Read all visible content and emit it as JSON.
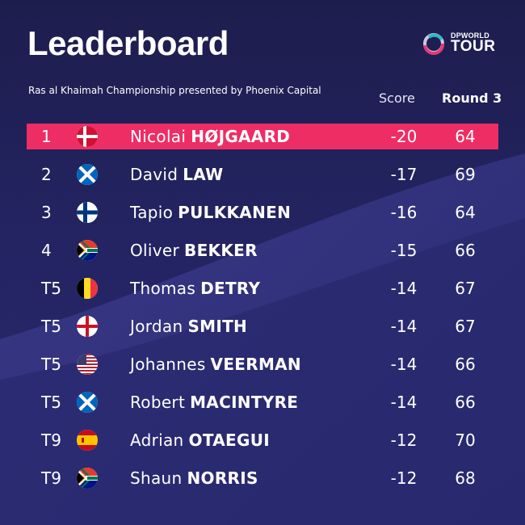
{
  "header": {
    "title": "Leaderboard",
    "subtitle": "Ras al Khaimah Championship presented by Phoenix Capital",
    "logo_small": "DPWORLD",
    "logo_big": "TOUR",
    "col_score": "Score",
    "col_round": "Round 3"
  },
  "colors": {
    "background": "#232360",
    "leader_highlight": "#ee2d64",
    "accent_light": "#3a3a86"
  },
  "rows": [
    {
      "pos": "1",
      "flag": "denmark-flag",
      "first": "Nicolai",
      "last": "HØJGAARD",
      "score": "-20",
      "round": "64"
    },
    {
      "pos": "2",
      "flag": "scotland-flag",
      "first": "David",
      "last": "LAW",
      "score": "-17",
      "round": "69"
    },
    {
      "pos": "3",
      "flag": "finland-flag",
      "first": "Tapio",
      "last": "PULKKANEN",
      "score": "-16",
      "round": "64"
    },
    {
      "pos": "4",
      "flag": "south-africa-flag",
      "first": "Oliver",
      "last": "BEKKER",
      "score": "-15",
      "round": "66"
    },
    {
      "pos": "T5",
      "flag": "belgium-flag",
      "first": "Thomas",
      "last": "DETRY",
      "score": "-14",
      "round": "67"
    },
    {
      "pos": "T5",
      "flag": "england-flag",
      "first": "Jordan",
      "last": "SMITH",
      "score": "-14",
      "round": "67"
    },
    {
      "pos": "T5",
      "flag": "usa-flag",
      "first": "Johannes",
      "last": "VEERMAN",
      "score": "-14",
      "round": "66"
    },
    {
      "pos": "T5",
      "flag": "scotland-flag",
      "first": "Robert",
      "last": "MACINTYRE",
      "score": "-14",
      "round": "66"
    },
    {
      "pos": "T9",
      "flag": "spain-flag",
      "first": "Adrian",
      "last": "OTAEGUI",
      "score": "-12",
      "round": "70"
    },
    {
      "pos": "T9",
      "flag": "south-africa-flag",
      "first": "Shaun",
      "last": "NORRIS",
      "score": "-12",
      "round": "68"
    }
  ]
}
